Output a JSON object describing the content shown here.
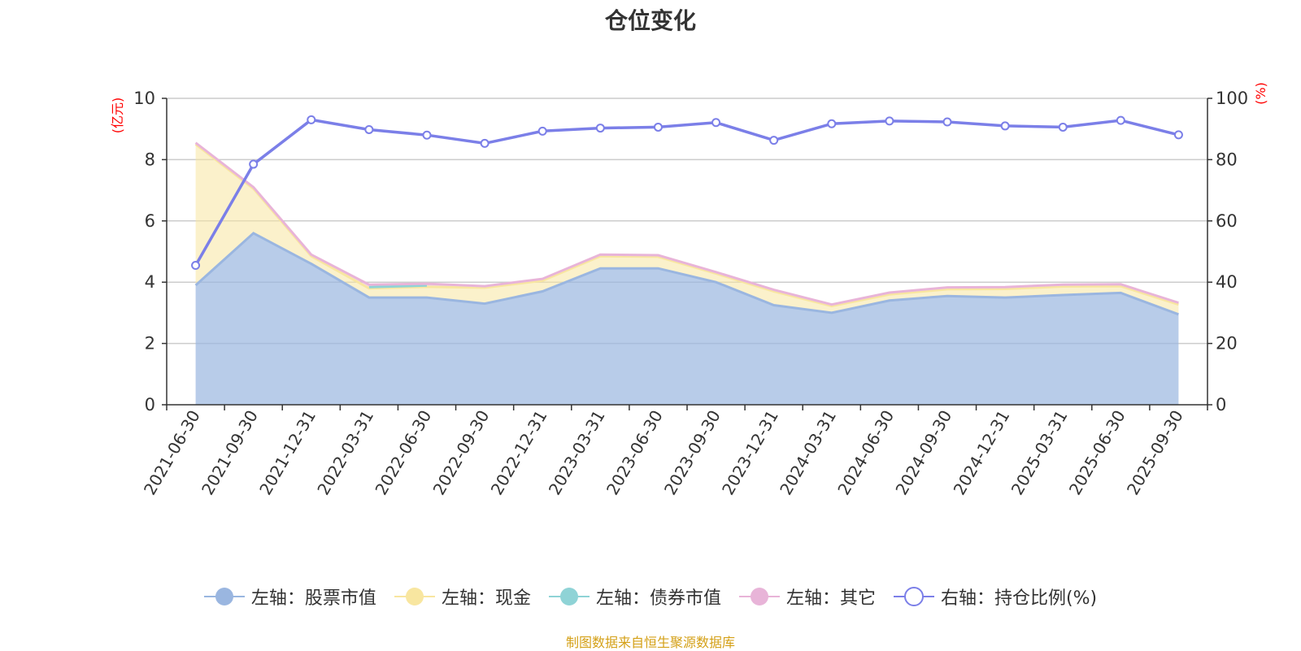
{
  "chart_data": {
    "type": "area",
    "title": "仓位变化",
    "left_axis_unit": "(亿元)",
    "right_axis_unit": "(%)",
    "ylim_left": [
      0,
      10
    ],
    "ylim_right": [
      0,
      100
    ],
    "left_ticks": [
      "0",
      "2",
      "4",
      "6",
      "8",
      "10"
    ],
    "right_ticks": [
      "0",
      "20",
      "40",
      "60",
      "80",
      "100"
    ],
    "categories": [
      "2021-06-30",
      "2021-09-30",
      "2021-12-31",
      "2022-03-31",
      "2022-06-30",
      "2022-09-30",
      "2022-12-31",
      "2023-03-31",
      "2023-06-30",
      "2023-09-30",
      "2023-12-31",
      "2024-03-31",
      "2024-06-30",
      "2024-09-30",
      "2024-12-31",
      "2025-03-31",
      "2025-06-30",
      "2025-09-30"
    ],
    "series": [
      {
        "name": "左轴：股票市值",
        "axis": "left",
        "kind": "stacked-area",
        "color": "#9ab6e0",
        "values": [
          3.9,
          5.6,
          4.6,
          3.5,
          3.5,
          3.3,
          3.7,
          4.45,
          4.45,
          4.0,
          3.25,
          3.0,
          3.4,
          3.55,
          3.5,
          3.58,
          3.65,
          2.95
        ]
      },
      {
        "name": "左轴：现金",
        "axis": "left",
        "kind": "stacked-area",
        "color": "#f8e6a0",
        "values": [
          4.6,
          1.45,
          0.25,
          0.3,
          0.35,
          0.52,
          0.35,
          0.4,
          0.38,
          0.28,
          0.45,
          0.22,
          0.2,
          0.22,
          0.28,
          0.28,
          0.22,
          0.32
        ]
      },
      {
        "name": "左轴：债券市值",
        "axis": "left",
        "kind": "stacked-area",
        "color": "#8fd3d6",
        "values": [
          0,
          0,
          0,
          0.04,
          0.04,
          0,
          0,
          0,
          0,
          0,
          0,
          0,
          0,
          0,
          0,
          0,
          0,
          0
        ]
      },
      {
        "name": "左轴：其它",
        "axis": "left",
        "kind": "stacked-area",
        "color": "#e8b4d8",
        "values": [
          0.05,
          0.05,
          0.05,
          0.08,
          0.06,
          0.05,
          0.06,
          0.05,
          0.05,
          0.05,
          0.05,
          0.05,
          0.06,
          0.06,
          0.06,
          0.06,
          0.06,
          0.06
        ]
      },
      {
        "name": "右轴：持仓比例(%)",
        "axis": "right",
        "kind": "line",
        "color": "#7b7fe8",
        "values": [
          45.5,
          78.5,
          93.0,
          89.8,
          88.0,
          85.3,
          89.3,
          90.3,
          90.6,
          92.1,
          86.3,
          91.7,
          92.6,
          92.3,
          91.0,
          90.6,
          92.8,
          88.1
        ]
      }
    ]
  },
  "source_note": "制图数据来自恒生聚源数据库"
}
